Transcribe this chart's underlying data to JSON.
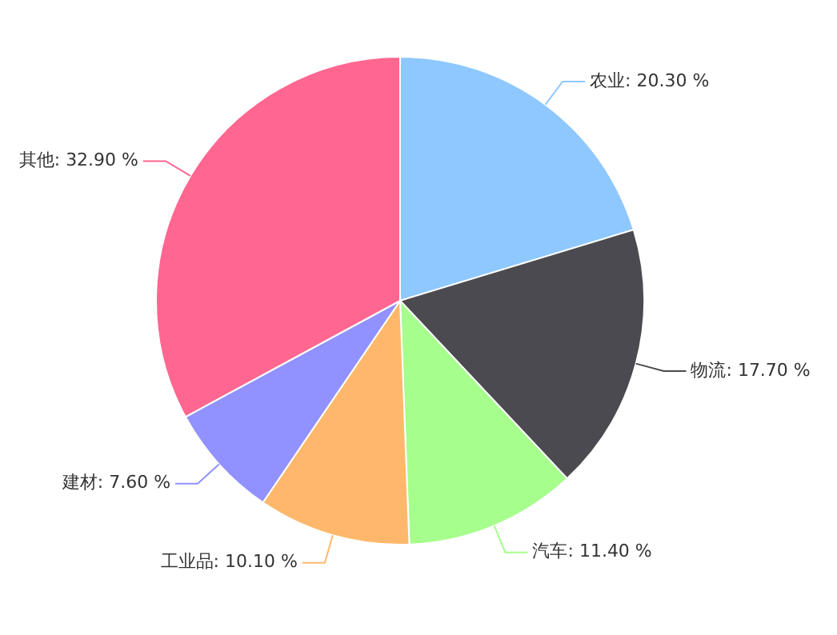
{
  "chart_data": {
    "type": "pie",
    "categories": [
      "农业",
      "物流",
      "汽车",
      "工业品",
      "建材",
      "其他"
    ],
    "values": [
      20.3,
      17.7,
      11.4,
      10.1,
      7.6,
      32.9
    ],
    "value_labels": [
      "20.30 %",
      "17.70 %",
      "11.40 %",
      "10.10 %",
      "7.60 %",
      "32.90 %"
    ],
    "colors": [
      "#8ec8ff",
      "#4b4a50",
      "#a6ff8c",
      "#ffb86b",
      "#9191ff",
      "#ff6690"
    ],
    "legend": false
  }
}
